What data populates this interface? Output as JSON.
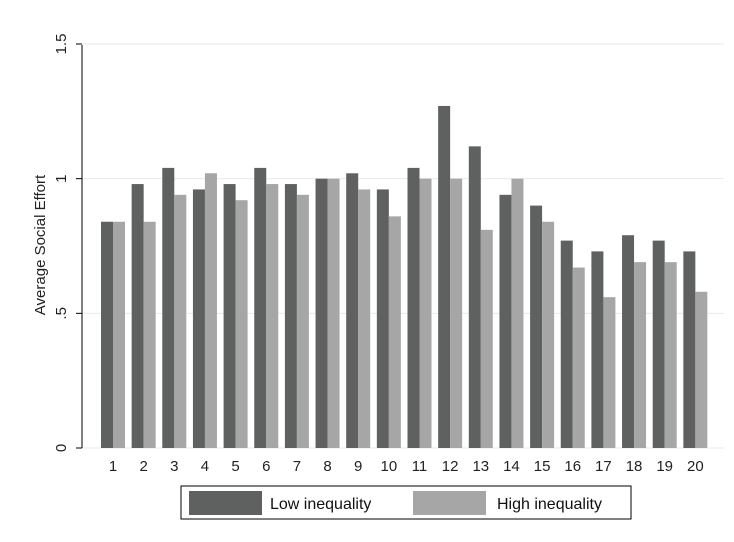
{
  "chart_data": {
    "type": "bar",
    "title": "",
    "xlabel": "",
    "ylabel": "Average Social Effort",
    "ylim": [
      0,
      1.5
    ],
    "yticks": [
      {
        "value": 0,
        "label": "0"
      },
      {
        "value": 0.5,
        "label": ".5"
      },
      {
        "value": 1,
        "label": "1"
      },
      {
        "value": 1.5,
        "label": "1.5"
      }
    ],
    "grid": true,
    "legend_position": "bottom",
    "categories": [
      "1",
      "2",
      "3",
      "4",
      "5",
      "6",
      "7",
      "8",
      "9",
      "10",
      "11",
      "12",
      "13",
      "14",
      "15",
      "16",
      "17",
      "18",
      "19",
      "20"
    ],
    "series": [
      {
        "name": "Low inequality",
        "color": "#5f6060",
        "values": [
          0.84,
          0.98,
          1.04,
          0.96,
          0.98,
          1.04,
          0.98,
          1.0,
          1.02,
          0.96,
          1.04,
          1.27,
          1.12,
          0.94,
          0.9,
          0.77,
          0.73,
          0.79,
          0.77,
          0.73
        ]
      },
      {
        "name": "High inequality",
        "color": "#a6a6a6",
        "values": [
          0.84,
          0.84,
          0.94,
          1.02,
          0.92,
          0.98,
          0.94,
          1.0,
          0.96,
          0.86,
          1.0,
          1.0,
          0.81,
          1.0,
          0.84,
          0.67,
          0.56,
          0.69,
          0.69,
          0.58
        ]
      }
    ]
  }
}
